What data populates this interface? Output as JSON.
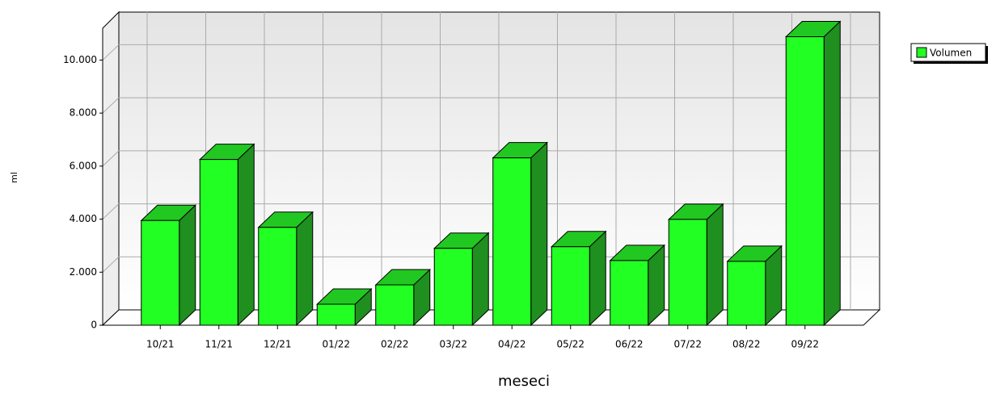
{
  "chart_data": {
    "type": "bar",
    "categories": [
      "10/21",
      "11/21",
      "12/21",
      "01/22",
      "02/22",
      "03/22",
      "04/22",
      "05/22",
      "06/22",
      "07/22",
      "08/22",
      "09/22"
    ],
    "series": [
      {
        "name": "Volumen",
        "color": "#22ff22",
        "values": [
          3950,
          6250,
          3690,
          790,
          1520,
          2900,
          6310,
          2960,
          2440,
          3990,
          2410,
          10880
        ]
      }
    ],
    "ylim": [
      0,
      11200
    ],
    "yticks": [
      0,
      {
        "value": 2000,
        "label": "2.000"
      },
      {
        "value": 4000,
        "label": "4.000"
      },
      {
        "value": 6000,
        "label": "6.000"
      },
      {
        "value": 8000,
        "label": "8.000"
      },
      {
        "value": 10000,
        "label": "10.000"
      }
    ],
    "ylabel": "ml",
    "xlabel": "meseci",
    "grid": true,
    "legend": "top-right"
  }
}
